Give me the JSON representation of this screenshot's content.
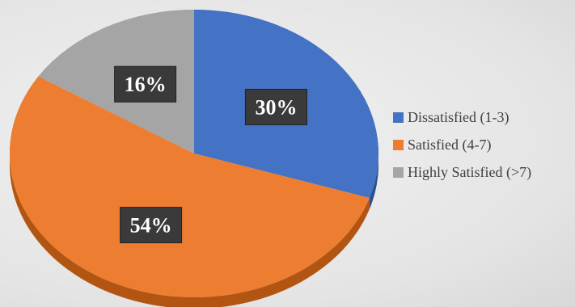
{
  "chart_data": {
    "type": "pie",
    "title": "",
    "style": "3d",
    "labels": [
      "Dissatisfied (1-3)",
      "Satisfied (4-7)",
      "Highly Satisfied (>7)"
    ],
    "values": [
      30,
      54,
      16
    ],
    "value_labels": [
      "30%",
      "54%",
      "16%"
    ],
    "colors": [
      "#4472c4",
      "#ed7d31",
      "#a5a5a5"
    ],
    "side_colors": [
      "#2f4f8a",
      "#b35512",
      "#7a7a7a"
    ],
    "legend": "right"
  }
}
